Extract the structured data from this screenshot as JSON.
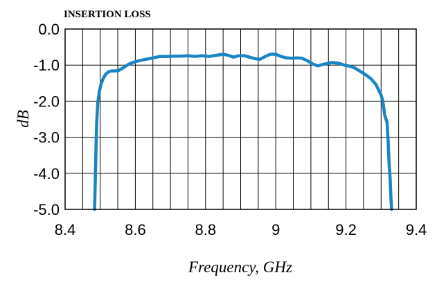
{
  "chart_data": {
    "type": "line",
    "title": "INSERTION LOSS",
    "xlabel": "Frequency, GHz",
    "ylabel": "dB",
    "xlim": [
      8.4,
      9.4
    ],
    "ylim": [
      -5.0,
      0.0
    ],
    "xticks": [
      8.4,
      8.6,
      8.8,
      9.0,
      9.2,
      9.4
    ],
    "xtick_labels": [
      "8.4",
      "8.6",
      "8.8",
      "9",
      "9.2",
      "9.4"
    ],
    "yticks": [
      0.0,
      -1.0,
      -2.0,
      -3.0,
      -4.0,
      -5.0
    ],
    "ytick_labels": [
      "0.0",
      "-1.0",
      "-2.0",
      "-3.0",
      "-4.0",
      "-5.0"
    ],
    "grid": true,
    "legend": "none",
    "series_color": "#1a85c4",
    "series": [
      {
        "x": [
          8.484,
          8.486,
          8.488,
          8.49,
          8.493,
          8.497,
          8.502,
          8.508,
          8.515,
          8.523,
          8.532,
          8.542,
          8.552,
          8.565,
          8.58,
          8.595,
          8.61,
          8.63,
          8.65,
          8.67,
          8.69,
          8.71,
          8.73,
          8.75,
          8.77,
          8.79,
          8.81,
          8.83,
          8.85,
          8.865,
          8.88,
          8.895,
          8.91,
          8.925,
          8.94,
          8.955,
          8.97,
          8.985,
          9.0,
          9.015,
          9.03,
          9.045,
          9.06,
          9.075,
          9.09,
          9.105,
          9.12,
          9.14,
          9.16,
          9.18,
          9.195,
          9.21,
          9.225,
          9.24,
          9.255,
          9.27,
          9.285,
          9.3,
          9.305,
          9.31,
          9.314,
          9.317,
          9.32,
          9.323,
          9.326,
          9.328,
          9.33
        ],
        "y": [
          -5.0,
          -4.2,
          -3.3,
          -2.6,
          -2.05,
          -1.75,
          -1.55,
          -1.38,
          -1.26,
          -1.19,
          -1.16,
          -1.16,
          -1.15,
          -1.08,
          -0.98,
          -0.92,
          -0.88,
          -0.84,
          -0.8,
          -0.76,
          -0.76,
          -0.75,
          -0.75,
          -0.74,
          -0.76,
          -0.74,
          -0.76,
          -0.73,
          -0.7,
          -0.73,
          -0.78,
          -0.74,
          -0.74,
          -0.78,
          -0.82,
          -0.84,
          -0.76,
          -0.7,
          -0.7,
          -0.76,
          -0.8,
          -0.81,
          -0.8,
          -0.81,
          -0.88,
          -0.97,
          -1.02,
          -0.97,
          -0.93,
          -0.95,
          -1.0,
          -1.03,
          -1.08,
          -1.17,
          -1.26,
          -1.37,
          -1.53,
          -1.83,
          -2.0,
          -2.38,
          -2.5,
          -2.58,
          -3.1,
          -3.8,
          -4.2,
          -4.7,
          -5.0
        ]
      }
    ]
  }
}
